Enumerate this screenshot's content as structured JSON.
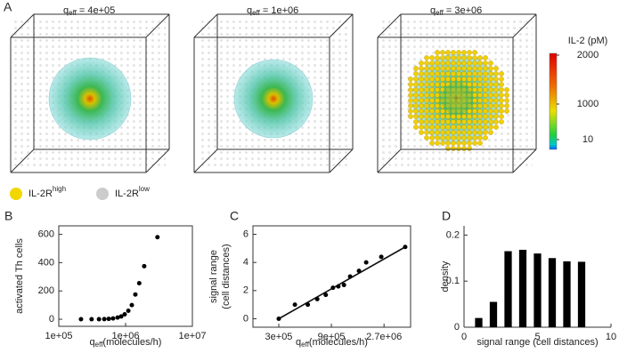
{
  "panel_a": {
    "label": "A",
    "plots": [
      {
        "title_symbol": "q",
        "title_subscript": "eff",
        "title_value": "= 4e+05"
      },
      {
        "title_symbol": "q",
        "title_subscript": "eff",
        "title_value": "= 1e+06"
      },
      {
        "title_symbol": "q",
        "title_subscript": "eff",
        "title_value": "= 3e+06"
      }
    ],
    "colorbar": {
      "title": "IL-2 (pM)",
      "labels": [
        "2000",
        "1000",
        "10"
      ]
    },
    "legend": [
      {
        "text": "IL-2R",
        "sup": "high",
        "color": "#f2d600"
      },
      {
        "text": "IL-2R",
        "sup": "low",
        "color": "#cccccc"
      }
    ]
  },
  "chart_data": [
    {
      "type": "scatter",
      "panel_label": "B",
      "box": true,
      "xlog": true,
      "ylabel": [
        "activated Th cells"
      ],
      "xlabel": {
        "symbol": "q",
        "subscript": "eff",
        "text": "(molecules/h)"
      },
      "points": {
        "x": [
          215000,
          310000,
          400000,
          480000,
          560000,
          650000,
          760000,
          860000,
          970000,
          1100000,
          1240000,
          1400000,
          1600000,
          1900000,
          3000000
        ],
        "y": [
          0,
          0,
          0,
          1,
          3,
          6,
          12,
          20,
          35,
          60,
          100,
          175,
          255,
          375,
          580
        ]
      },
      "xlim": [
        100000,
        10000000
      ],
      "xticks": [
        {
          "value": 100000,
          "label": "1e+05"
        },
        {
          "value": 1000000,
          "label": "1e+06"
        },
        {
          "value": 10000000,
          "label": "1e+07"
        }
      ],
      "ylim": [
        -50,
        660
      ],
      "yticks": [
        0,
        200,
        400,
        600
      ]
    },
    {
      "type": "scatter",
      "panel_label": "C",
      "box": true,
      "xlog": true,
      "ylabel": [
        "signal range",
        "(cell distances)"
      ],
      "xlabel": {
        "symbol": "q",
        "subscript": "eff",
        "text": "(molecules/h)"
      },
      "points": {
        "x": [
          300000,
          420000,
          550000,
          670000,
          800000,
          930000,
          1040000,
          1170000,
          1330000,
          1600000,
          1860000,
          2550000,
          4200000
        ],
        "y": [
          0,
          1.0,
          1.0,
          1.4,
          1.7,
          2.2,
          2.3,
          2.4,
          3.0,
          3.4,
          4.0,
          4.4,
          5.1
        ]
      },
      "fit": {
        "x": [
          300000,
          4200000
        ],
        "y": [
          0,
          5.1
        ]
      },
      "xlim": [
        175000,
        4700000
      ],
      "xticks": [
        {
          "value": 300000,
          "label": "3e+05"
        },
        {
          "value": 900000,
          "label": "9e+05"
        },
        {
          "value": 2700000,
          "label": "2.7e+06"
        }
      ],
      "ylim": [
        -0.6,
        6.6
      ],
      "yticks": [
        0,
        2,
        4,
        6
      ]
    },
    {
      "type": "bar",
      "panel_label": "D",
      "box": false,
      "xlog": false,
      "ylabel": [
        "density"
      ],
      "xlabel": {
        "text": "signal range (cell distances)"
      },
      "x": [
        1,
        2,
        3,
        4,
        5,
        6,
        7,
        8
      ],
      "values": [
        0.02,
        0.055,
        0.165,
        0.168,
        0.16,
        0.15,
        0.143,
        0.142
      ],
      "xlim": [
        0,
        10
      ],
      "xticks": [
        0,
        5,
        10
      ],
      "ylim": [
        0,
        0.22
      ],
      "yticks": [
        0,
        0.1,
        0.2
      ]
    }
  ]
}
